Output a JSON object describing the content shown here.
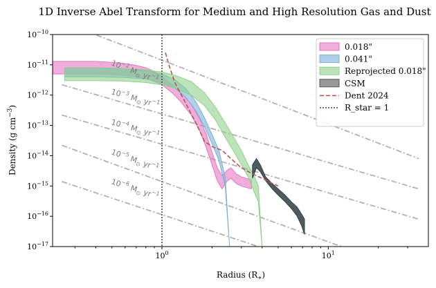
{
  "chart_data": {
    "type": "line",
    "title": "1D Inverse Abel Transform for Medium and High Resolution Gas and Dust",
    "xlabel": "Radius (R",
    "xlabel_sub": "∗",
    "xlabel_close": ")",
    "ylabel": "Density (g cm",
    "ylabel_sup": "−3",
    "ylabel_close": ")",
    "x_scale": "log",
    "y_scale": "log",
    "xlim": [
      0.22,
      40
    ],
    "ylim": [
      1e-17,
      1e-10
    ],
    "x_ticks": [
      {
        "value": 1,
        "label": "10",
        "exp": "0"
      },
      {
        "value": 10,
        "label": "10",
        "exp": "1"
      }
    ],
    "y_ticks": [
      {
        "value": 1e-10,
        "label": "10",
        "exp": "−10"
      },
      {
        "value": 1e-11,
        "label": "10",
        "exp": "−11"
      },
      {
        "value": 1e-12,
        "label": "10",
        "exp": "−12"
      },
      {
        "value": 1e-13,
        "label": "10",
        "exp": "−13"
      },
      {
        "value": 1e-14,
        "label": "10",
        "exp": "−14"
      },
      {
        "value": 1e-15,
        "label": "10",
        "exp": "−15"
      },
      {
        "value": 1e-16,
        "label": "10",
        "exp": "−16"
      },
      {
        "value": 1e-17,
        "label": "10",
        "exp": "−17"
      }
    ],
    "legend_position": "top-right",
    "mass_loss_lines": [
      {
        "label_base": "10",
        "label_exp": "−2",
        "label_unit": " M",
        "label_sub": "⊙",
        "label_tail": " yr",
        "label_tail_exp": "−1",
        "x": [
          0.35,
          35
        ],
        "y": [
          1.3e-10,
          8e-15
        ]
      },
      {
        "label_base": "10",
        "label_exp": "−3",
        "label_unit": " M",
        "label_sub": "⊙",
        "label_tail": " yr",
        "label_tail_exp": "−1",
        "x": [
          0.25,
          35
        ],
        "y": [
          2.2e-12,
          8e-16
        ]
      },
      {
        "label_base": "10",
        "label_exp": "−4",
        "label_unit": " M",
        "label_sub": "⊙",
        "label_tail": " yr",
        "label_tail_exp": "−1",
        "x": [
          0.25,
          35
        ],
        "y": [
          2.2e-13,
          8e-17
        ]
      },
      {
        "label_base": "10",
        "label_exp": "−5",
        "label_unit": " M",
        "label_sub": "⊙",
        "label_tail": " yr",
        "label_tail_exp": "−1",
        "x": [
          0.25,
          12
        ],
        "y": [
          2.2e-14,
          1e-17
        ]
      },
      {
        "label_base": "10",
        "label_exp": "−6",
        "label_unit": " M",
        "label_sub": "⊙",
        "label_tail": " yr",
        "label_tail_exp": "−1",
        "x": [
          0.25,
          3.8
        ],
        "y": [
          1.4e-15,
          1e-17
        ]
      }
    ],
    "series": [
      {
        "name": "0.018\"",
        "kind": "band",
        "color": "#e377c2",
        "x": [
          0.22,
          0.3,
          0.4,
          0.5,
          0.6,
          0.7,
          0.8,
          0.9,
          1.0,
          1.15,
          1.3,
          1.5,
          1.7,
          1.85,
          2.0,
          2.15,
          2.3,
          2.45,
          2.6,
          2.8,
          3.0,
          3.2,
          3.45
        ],
        "upper": [
          1.3e-11,
          1.3e-11,
          1.3e-11,
          1.2e-11,
          1.1e-11,
          9.5e-12,
          8e-12,
          6e-12,
          4e-12,
          2.2e-12,
          1.2e-12,
          5e-13,
          1.5e-13,
          5e-14,
          1.3e-14,
          4e-15,
          2.2e-15,
          3.2e-15,
          4e-15,
          2.5e-15,
          2e-15,
          1.8e-15,
          1.6e-15
        ],
        "lower": [
          5e-12,
          5e-12,
          5e-12,
          4.8e-12,
          4.5e-12,
          4e-12,
          3.5e-12,
          2.8e-12,
          2.2e-12,
          1.2e-12,
          6e-13,
          2.2e-13,
          6e-14,
          1.8e-14,
          5e-15,
          1.5e-15,
          8e-16,
          1.4e-15,
          1.8e-15,
          1.2e-15,
          1e-15,
          9e-16,
          8e-16
        ]
      },
      {
        "name": "0.041\"",
        "kind": "band",
        "color": "#7bb0d8",
        "x": [
          0.26,
          0.4,
          0.6,
          0.8,
          1.0,
          1.2,
          1.4,
          1.6,
          1.8,
          2.0,
          2.2,
          2.4,
          2.55
        ],
        "upper": [
          8e-12,
          8e-12,
          7.5e-12,
          6.5e-12,
          5e-12,
          3.2e-12,
          1.6e-12,
          6e-13,
          1.8e-13,
          5e-14,
          1.5e-14,
          2e-15,
          1e-17
        ],
        "lower": [
          4e-12,
          4e-12,
          3.8e-12,
          3.4e-12,
          2.6e-12,
          1.7e-12,
          8e-13,
          3e-13,
          9e-14,
          2.5e-14,
          7e-15,
          1e-15,
          1e-17
        ]
      },
      {
        "name": "Reprojected 0.018\"",
        "kind": "band",
        "color": "#8fd18b",
        "x": [
          0.26,
          0.4,
          0.6,
          0.8,
          1.0,
          1.2,
          1.5,
          1.8,
          2.1,
          2.4,
          2.7,
          3.0,
          3.3,
          3.6,
          3.8,
          4.0
        ],
        "upper": [
          8e-12,
          8e-12,
          7.5e-12,
          6.8e-12,
          5.8e-12,
          4.5e-12,
          2.8e-12,
          1.2e-12,
          4e-13,
          1.2e-13,
          4e-14,
          1.5e-14,
          5e-15,
          2e-15,
          1e-15,
          1e-17
        ],
        "lower": [
          3e-12,
          3e-12,
          2.9e-12,
          2.6e-12,
          2.2e-12,
          1.7e-12,
          1e-12,
          4.5e-13,
          1.5e-13,
          4e-14,
          1.4e-14,
          5e-15,
          2e-15,
          6e-16,
          3e-16,
          1e-17
        ]
      },
      {
        "name": "CSM",
        "kind": "band",
        "color": "#2f3f46",
        "x": [
          3.5,
          3.7,
          3.9,
          4.2,
          4.6,
          5.0,
          5.5,
          6.0,
          6.5,
          6.9,
          7.2
        ],
        "upper": [
          5e-15,
          8e-15,
          5e-15,
          2e-15,
          1.2e-15,
          8e-16,
          5e-16,
          3e-16,
          2e-16,
          1.2e-16,
          8e-17
        ],
        "lower": [
          1.8e-15,
          4e-15,
          3e-15,
          1.5e-15,
          8e-16,
          5e-16,
          3e-16,
          1.8e-16,
          1e-16,
          5e-17,
          2.5e-17
        ]
      },
      {
        "name": "Dent 2024",
        "kind": "line",
        "style": "dashed",
        "color": "#c0504d",
        "x": [
          1.05,
          1.1,
          1.2,
          1.4,
          1.6,
          1.8,
          2.0,
          2.3,
          2.6,
          3.0,
          3.5,
          4.0,
          4.5,
          5.0
        ],
        "y": [
          2.5e-11,
          1e-11,
          2.5e-12,
          5e-13,
          1.2e-13,
          3e-14,
          2e-14,
          1.5e-14,
          8e-15,
          4e-15,
          2.5e-15,
          1.8e-15,
          1.3e-15,
          1e-15
        ]
      },
      {
        "name": "R_star = 1",
        "kind": "vline",
        "style": "dotted",
        "color": "#444444",
        "x": 1
      }
    ]
  }
}
